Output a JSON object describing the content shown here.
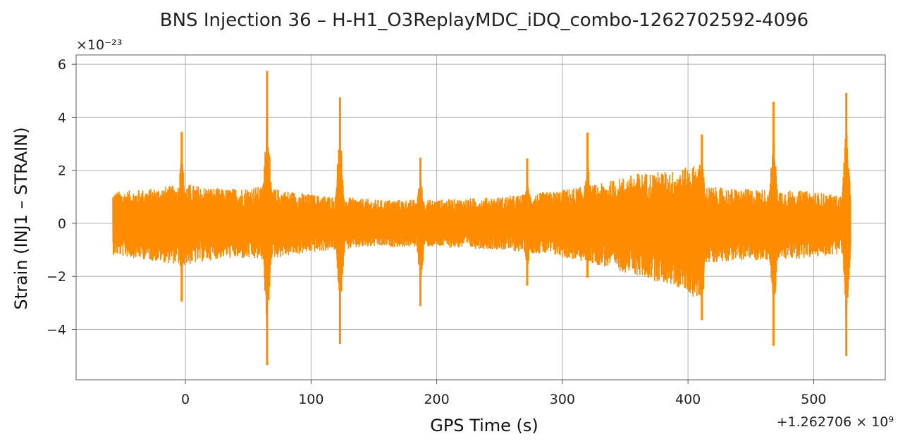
{
  "chart_data": {
    "type": "line",
    "title": "BNS Injection 36 – H-H1_O3ReplayMDC_iDQ_combo-1262702592-4096",
    "xlabel": "GPS Time (s)",
    "ylabel": "Strain (INJ1 – STRAIN)",
    "x_offset_text": "+1.262706 × 10⁹",
    "y_scale_text": "×10⁻²³",
    "xlim": [
      -87,
      557
    ],
    "ylim": [
      -5.9,
      6.35
    ],
    "x_ticks": [
      0,
      100,
      200,
      300,
      400,
      500
    ],
    "x_tick_labels": [
      "0",
      "100",
      "200",
      "300",
      "400",
      "500"
    ],
    "y_ticks": [
      -4,
      -2,
      0,
      2,
      4,
      6
    ],
    "y_tick_labels": [
      "−4",
      "−2",
      "0",
      "2",
      "4",
      "6"
    ],
    "grid": true,
    "series": [
      {
        "color": "#ff8c00",
        "x_range": [
          -58,
          528
        ],
        "envelope": {
          "x": [
            -58,
            -30,
            0,
            30,
            60,
            100,
            150,
            200,
            250,
            290,
            330,
            360,
            390,
            412,
            413,
            440,
            470,
            500,
            528
          ],
          "upper": [
            1.2,
            1.3,
            1.5,
            1.3,
            1.4,
            1.1,
            0.9,
            0.9,
            1.0,
            1.2,
            1.5,
            1.9,
            2.0,
            2.3,
            1.4,
            1.3,
            1.3,
            1.2,
            1.0
          ],
          "lower": [
            -1.2,
            -1.4,
            -1.6,
            -1.3,
            -1.4,
            -1.1,
            -0.9,
            -0.9,
            -1.0,
            -1.2,
            -1.6,
            -2.0,
            -2.4,
            -3.0,
            -1.5,
            -1.4,
            -1.4,
            -1.3,
            -1.1
          ]
        },
        "spikes": [
          {
            "x": -3,
            "max": 3.45,
            "min": -2.95
          },
          {
            "x": 65,
            "max": 5.75,
            "min": -5.35
          },
          {
            "x": 123,
            "max": 4.75,
            "min": -4.55
          },
          {
            "x": 187,
            "max": 2.48,
            "min": -3.12
          },
          {
            "x": 272,
            "max": 2.45,
            "min": -2.35
          },
          {
            "x": 320,
            "max": 3.42,
            "min": -2.05
          },
          {
            "x": 411,
            "max": 3.35,
            "min": -3.65
          },
          {
            "x": 468,
            "max": 4.58,
            "min": -4.62
          },
          {
            "x": 526,
            "max": 4.92,
            "min": -5.0
          }
        ]
      }
    ]
  }
}
